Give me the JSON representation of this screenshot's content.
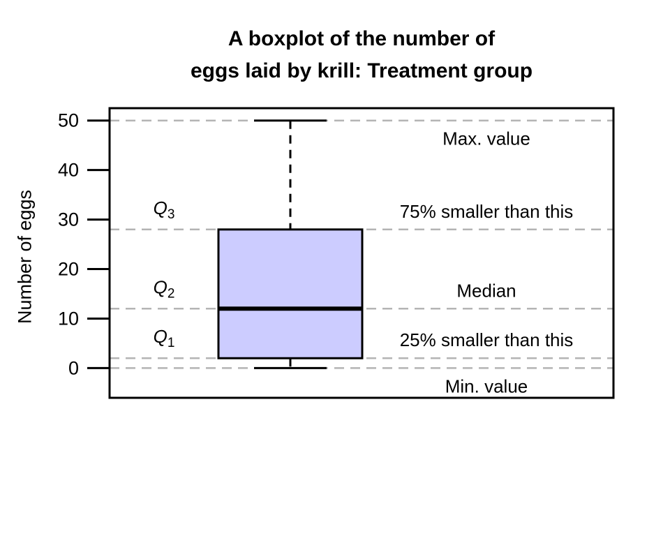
{
  "title": {
    "line1": "A boxplot of the number of",
    "line2": "eggs laid by krill: Treatment group"
  },
  "chart_data": {
    "type": "boxplot",
    "title": "A boxplot of the number of eggs laid by krill: Treatment group",
    "ylabel": "Number of eggs",
    "yticks": [
      0,
      10,
      20,
      30,
      40,
      50
    ],
    "ylim": [
      -6,
      52.5
    ],
    "legend": "none",
    "grid": "dashed horizontal reference lines at boxplot statistics",
    "series": [
      {
        "name": "Treatment group",
        "min": 0,
        "q1": 2,
        "median": 12,
        "q3": 28,
        "max": 50
      }
    ],
    "gridlines": {
      "values": [
        50,
        28,
        12,
        2,
        0
      ],
      "style": "dashed",
      "color": "#b4b4b4"
    },
    "box_fill": "#ccccff",
    "stroke_color": "#000000",
    "annotations_right": [
      {
        "text": "Max. value",
        "at": 50,
        "placement": "below"
      },
      {
        "text": "75% smaller than this",
        "at": 28,
        "placement": "above"
      },
      {
        "text": "Median",
        "at": 12,
        "placement": "above"
      },
      {
        "text": "25% smaller than this",
        "at": 2,
        "placement": "above"
      },
      {
        "text": "Min. value",
        "at": 0,
        "placement": "below"
      }
    ],
    "annotations_left": [
      {
        "base": "Q",
        "sub": "3",
        "at": 28
      },
      {
        "base": "Q",
        "sub": "2",
        "at": 12
      },
      {
        "base": "Q",
        "sub": "1",
        "at": 2
      }
    ]
  }
}
